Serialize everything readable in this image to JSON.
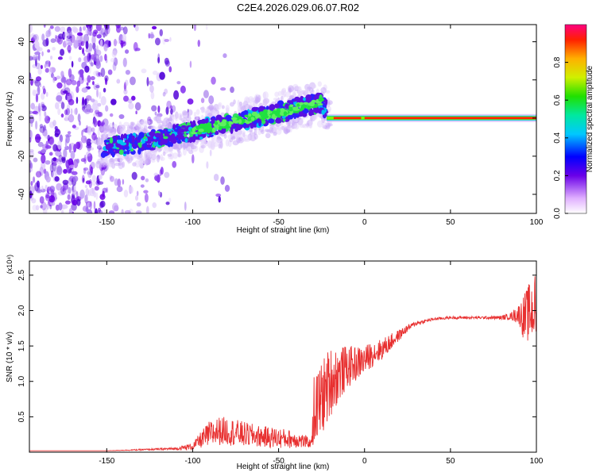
{
  "title": "C2E4.2026.029.06.07.R02",
  "colorbar": {
    "label": "Normalized spectral amplitude",
    "ticks": [
      "0.0",
      "0.2",
      "0.4",
      "0.6",
      "0.8"
    ],
    "tick_values": [
      0.0,
      0.2,
      0.4,
      0.6,
      0.8
    ],
    "range": [
      0,
      1
    ]
  },
  "colors": {
    "snr_line": "#e83030",
    "axis": "#000000"
  },
  "chart_data": [
    {
      "type": "heatmap",
      "name": "spectrogram",
      "xlabel": "Height of straight line (km)",
      "ylabel": "Frequency (Hz)",
      "xlim": [
        -195,
        100
      ],
      "ylim": [
        -50,
        49
      ],
      "xticks": [
        -150,
        -100,
        -50,
        0,
        50,
        100
      ],
      "yticks": [
        -40,
        -20,
        0,
        20,
        40
      ],
      "track": {
        "x": [
          -150,
          -140,
          -130,
          -120,
          -110,
          -100,
          -90,
          -80,
          -70,
          -60,
          -50,
          -40,
          -30,
          -25,
          -20,
          -10,
          0,
          10,
          20,
          40,
          60,
          80,
          100
        ],
        "y": [
          -15,
          -14,
          -13,
          -11,
          -9,
          -7,
          -5,
          -3,
          -1,
          1,
          3,
          5,
          7,
          8,
          1,
          0,
          0,
          0,
          0,
          0,
          0,
          0,
          0
        ]
      }
    },
    {
      "type": "line",
      "name": "snr",
      "xlabel": "Height of straight line (km)",
      "ylabel": "SNR (10 * v/v)",
      "scale_label": "(x10⁴)",
      "xlim": [
        -195,
        100
      ],
      "ylim": [
        0,
        2.7
      ],
      "xticks": [
        -150,
        -100,
        -50,
        0,
        50,
        100
      ],
      "yticks": [
        0.5,
        1.0,
        1.5,
        2.0,
        2.5
      ],
      "ytick_labels": [
        "0.5",
        "1.0",
        "1.5",
        "2.0",
        "2.5"
      ],
      "envelope": {
        "x": [
          -195,
          -150,
          -110,
          -100,
          -95,
          -90,
          -85,
          -80,
          -70,
          -60,
          -50,
          -40,
          -35,
          -31,
          -30,
          -25,
          -20,
          -15,
          -10,
          -5,
          0,
          5,
          10,
          15,
          20,
          25,
          30,
          40,
          50,
          60,
          70,
          80,
          85,
          90,
          93,
          95,
          97,
          100
        ],
        "y": [
          0.02,
          0.02,
          0.05,
          0.08,
          0.18,
          0.25,
          0.3,
          0.3,
          0.25,
          0.22,
          0.2,
          0.18,
          0.15,
          0.12,
          0.55,
          0.75,
          1.0,
          1.1,
          1.2,
          1.25,
          1.3,
          1.4,
          1.45,
          1.55,
          1.65,
          1.75,
          1.82,
          1.88,
          1.9,
          1.9,
          1.9,
          1.9,
          1.92,
          1.95,
          1.9,
          1.95,
          2.0,
          2.05
        ],
        "noise": [
          0.0,
          0.0,
          0.02,
          0.05,
          0.12,
          0.2,
          0.2,
          0.2,
          0.18,
          0.15,
          0.15,
          0.12,
          0.1,
          0.05,
          0.5,
          0.55,
          0.5,
          0.4,
          0.3,
          0.25,
          0.2,
          0.18,
          0.15,
          0.12,
          0.08,
          0.05,
          0.03,
          0.02,
          0.02,
          0.02,
          0.02,
          0.03,
          0.05,
          0.15,
          0.35,
          0.4,
          0.45,
          0.5
        ]
      }
    }
  ]
}
